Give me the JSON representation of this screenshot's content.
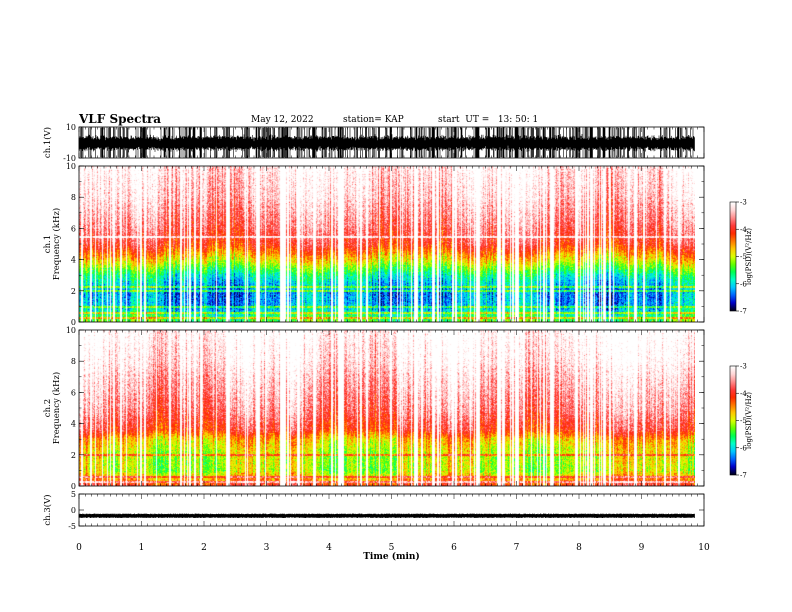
{
  "header": {
    "title": "VLF Spectra",
    "date": "May 12, 2022",
    "station": "station= KAP",
    "start": "start  UT =   13: 50: 1"
  },
  "colormap": [
    "#00001e",
    "#0000c8",
    "#0064ff",
    "#00c8ff",
    "#00ffc8",
    "#00ff50",
    "#64ff00",
    "#dcff00",
    "#ffc800",
    "#ff7800",
    "#ff2a00",
    "#ff3b3b",
    "#ff8c8c",
    "#ffd6d6",
    "#ffffff"
  ],
  "chart_data": [
    {
      "type": "line",
      "panel": "ch1",
      "ylabel": "ch.1(V)",
      "ylim": [
        -10,
        10
      ],
      "yticks": [
        "10",
        "-10"
      ],
      "xlim": [
        0,
        10
      ],
      "time_end_min": 9.85,
      "envelope_v": [
        -8.5,
        7.5
      ]
    },
    {
      "type": "heatmap",
      "panel": "ch1-spectrogram",
      "ylabel": "ch.1\nFrequency (kHz)",
      "ylim": [
        0,
        10
      ],
      "yticks": [
        "0",
        "2",
        "4",
        "6",
        "8",
        "10"
      ],
      "xlim": [
        0,
        10
      ],
      "time_end_min": 9.85,
      "colorbar": {
        "label": "log(PSD)(V²/Hz)",
        "range": [
          -7,
          -3
        ],
        "ticks": [
          "-3",
          "-4",
          "-5",
          "-6",
          "-7"
        ]
      },
      "profile_log_psd": [
        [
          0,
          -5.3
        ],
        [
          0.4,
          -5.6
        ],
        [
          1,
          -6.2
        ],
        [
          2,
          -6.3
        ],
        [
          3,
          -5.8
        ],
        [
          4,
          -4.8
        ],
        [
          5,
          -4.0
        ],
        [
          6,
          -3.7
        ],
        [
          7,
          -3.5
        ],
        [
          8,
          -3.3
        ],
        [
          10,
          -3.1
        ]
      ],
      "lines_khz": [
        0.3,
        0.6,
        1.0,
        2.0,
        2.3,
        5.5
      ]
    },
    {
      "type": "heatmap",
      "panel": "ch2-spectrogram",
      "ylabel": "ch.2\nFrequency (kHz)",
      "ylim": [
        0,
        10
      ],
      "yticks": [
        "0",
        "2",
        "4",
        "6",
        "8",
        "10"
      ],
      "xlim": [
        0,
        10
      ],
      "time_end_min": 9.85,
      "colorbar": {
        "label": "log(PSD)(V²/Hz)",
        "range": [
          -7,
          -3
        ],
        "ticks": [
          "-3",
          "-4",
          "-5",
          "-6",
          "-7"
        ]
      },
      "profile_log_psd": [
        [
          0,
          -3.9
        ],
        [
          0.4,
          -4.4
        ],
        [
          1,
          -5.1
        ],
        [
          2,
          -5.0
        ],
        [
          3,
          -4.7
        ],
        [
          3.6,
          -4.0
        ],
        [
          5,
          -3.6
        ],
        [
          7,
          -3.3
        ],
        [
          8,
          -3.1
        ],
        [
          10,
          -2.9
        ]
      ],
      "lines_khz": [
        0.3,
        0.6,
        2.0
      ]
    },
    {
      "type": "line",
      "panel": "ch3",
      "ylabel": "ch.3(V)",
      "ylim": [
        -5,
        5
      ],
      "yticks": [
        "5",
        "0",
        "-5"
      ],
      "xlim": [
        0,
        10
      ],
      "time_end_min": 9.85,
      "level_v": -1.8
    }
  ],
  "xaxis": {
    "label": "Time (min)",
    "ticks": [
      "0",
      "1",
      "2",
      "3",
      "4",
      "5",
      "6",
      "7",
      "8",
      "9",
      "10"
    ]
  }
}
